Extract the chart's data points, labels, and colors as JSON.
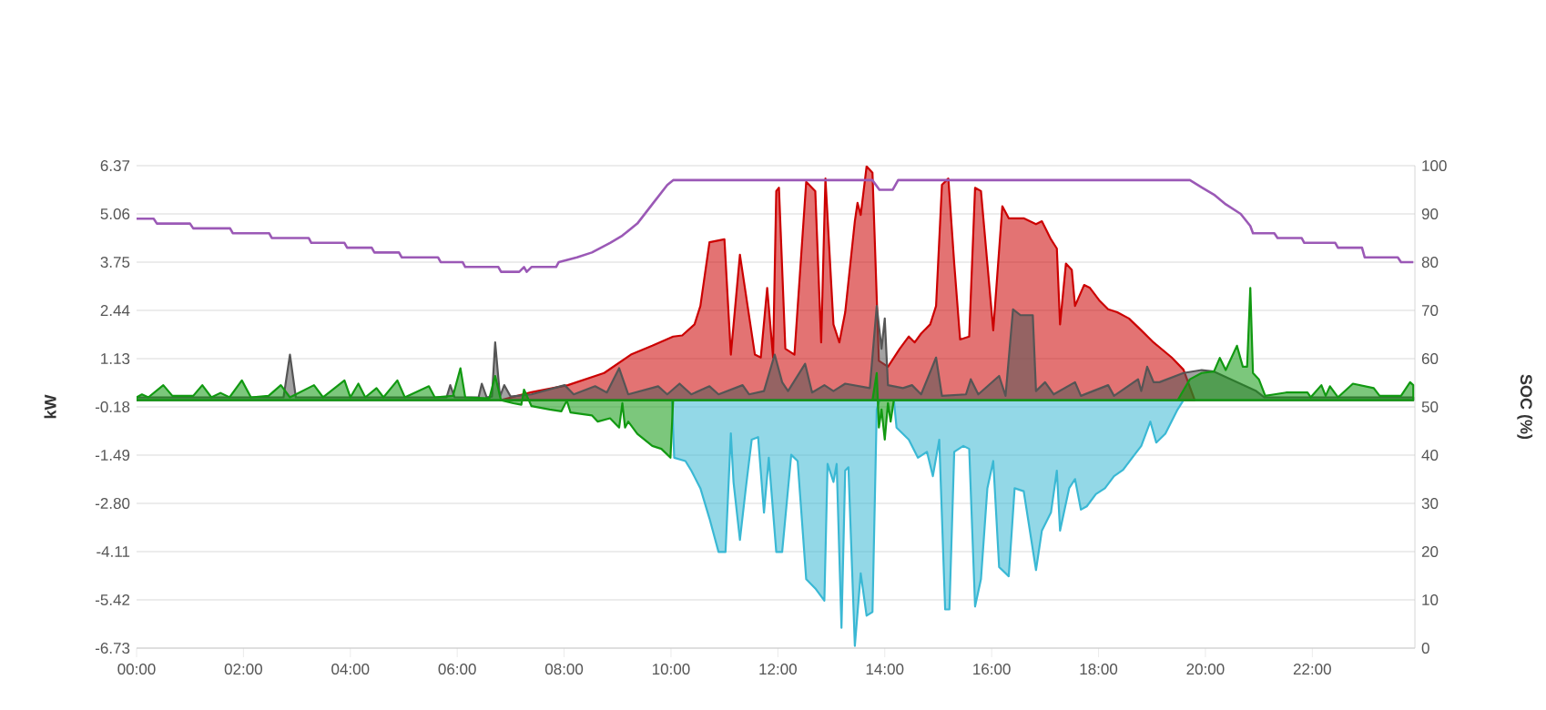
{
  "chart_data": {
    "type": "area",
    "ylabel": "kW",
    "y2label": "SOC (%)",
    "xlim": [
      0,
      23.92
    ],
    "ylim": [
      -6.73,
      6.37
    ],
    "y2lim": [
      0,
      100
    ],
    "xticks": [
      {
        "value": 0,
        "label": "00:00"
      },
      {
        "value": 2,
        "label": "02:00"
      },
      {
        "value": 4,
        "label": "04:00"
      },
      {
        "value": 6,
        "label": "06:00"
      },
      {
        "value": 8,
        "label": "08:00"
      },
      {
        "value": 10,
        "label": "10:00"
      },
      {
        "value": 12,
        "label": "12:00"
      },
      {
        "value": 14,
        "label": "14:00"
      },
      {
        "value": 16,
        "label": "16:00"
      },
      {
        "value": 18,
        "label": "18:00"
      },
      {
        "value": 20,
        "label": "20:00"
      },
      {
        "value": 22,
        "label": "22:00"
      }
    ],
    "yticks": [
      6.37,
      5.06,
      3.75,
      2.44,
      1.13,
      -0.18,
      -1.49,
      {
        "value": -2.8,
        "label": "-2.80"
      },
      -4.11,
      -5.42,
      -6.73
    ],
    "y2ticks": [
      0,
      10,
      20,
      30,
      40,
      50,
      60,
      70,
      80,
      90,
      100
    ],
    "grid": "y",
    "series": [
      {
        "color": "#cc0000",
        "x": [
          6.8,
          7.39,
          8.07,
          8.75,
          9.25,
          9.65,
          10.04,
          10.21,
          10.44,
          10.55,
          10.72,
          11.0,
          11.12,
          11.29,
          11.57,
          11.68,
          11.8,
          11.91,
          11.97,
          12.02,
          12.14,
          12.31,
          12.53,
          12.7,
          12.81,
          12.89,
          13.04,
          13.15,
          13.26,
          13.44,
          13.49,
          13.55,
          13.66,
          13.77,
          13.89,
          14.06,
          14.28,
          14.45,
          14.56,
          14.68,
          14.85,
          14.96,
          15.07,
          15.19,
          15.3,
          15.41,
          15.58,
          15.69,
          15.8,
          15.92,
          16.03,
          16.2,
          16.32,
          16.6,
          16.83,
          16.94,
          17.11,
          17.22,
          17.28,
          17.39,
          17.5,
          17.56,
          17.73,
          17.84,
          18.01,
          18.18,
          18.35,
          18.57,
          18.8,
          19.03,
          19.37,
          19.59,
          19.8
        ],
        "values": [
          0,
          0.22,
          0.41,
          0.74,
          1.24,
          1.48,
          1.73,
          1.76,
          2.06,
          2.56,
          4.29,
          4.37,
          1.24,
          3.95,
          1.24,
          1.16,
          3.05,
          1.16,
          5.68,
          5.77,
          1.4,
          1.24,
          5.93,
          5.68,
          1.57,
          6.02,
          2.06,
          1.57,
          2.39,
          4.86,
          5.36,
          5.03,
          6.35,
          6.18,
          1.07,
          0.91,
          1.4,
          1.73,
          1.57,
          1.81,
          2.06,
          2.56,
          5.85,
          6.02,
          3.71,
          1.65,
          1.73,
          5.77,
          5.68,
          3.71,
          1.9,
          5.27,
          4.94,
          4.94,
          4.78,
          4.86,
          4.37,
          4.12,
          2.06,
          3.71,
          3.54,
          2.56,
          3.13,
          3.05,
          2.72,
          2.47,
          2.39,
          2.22,
          1.9,
          1.57,
          1.16,
          0.83,
          0
        ]
      },
      {
        "color": "#3ab8d4",
        "x": [
          10.02,
          10.06,
          10.27,
          10.38,
          10.55,
          10.72,
          10.89,
          11.02,
          11.12,
          11.17,
          11.29,
          11.4,
          11.51,
          11.63,
          11.74,
          11.83,
          11.97,
          12.08,
          12.25,
          12.37,
          12.53,
          12.7,
          12.87,
          12.93,
          13.04,
          13.1,
          13.19,
          13.26,
          13.32,
          13.44,
          13.55,
          13.66,
          13.77,
          13.85,
          13.9,
          14.17,
          14.22,
          14.45,
          14.62,
          14.79,
          14.9,
          15.02,
          15.13,
          15.21,
          15.3,
          15.47,
          15.58,
          15.69,
          15.8,
          15.92,
          16.03,
          16.14,
          16.32,
          16.43,
          16.6,
          16.83,
          16.94,
          17.11,
          17.22,
          17.28,
          17.45,
          17.56,
          17.67,
          17.78,
          17.95,
          18.12,
          18.29,
          18.46,
          18.63,
          18.8,
          18.97,
          19.08,
          19.25,
          19.48,
          19.59
        ],
        "values": [
          0,
          -1.56,
          -1.65,
          -1.91,
          -2.39,
          -3.21,
          -4.12,
          -4.12,
          -0.9,
          -2.22,
          -3.79,
          -2.39,
          -1.07,
          -1.0,
          -3.05,
          -1.56,
          -4.12,
          -4.12,
          -1.48,
          -1.65,
          -4.86,
          -5.11,
          -5.44,
          -1.73,
          -2.22,
          -1.73,
          -6.18,
          -1.91,
          -1.82,
          -6.67,
          -4.7,
          -5.85,
          -5.75,
          -0.25,
          0,
          0,
          -0.74,
          -1.07,
          -1.56,
          -1.4,
          -2.06,
          -1.07,
          -5.68,
          -5.68,
          -1.4,
          -1.24,
          -1.32,
          -5.6,
          -4.86,
          -2.39,
          -1.65,
          -4.53,
          -4.78,
          -2.39,
          -2.47,
          -4.61,
          -3.54,
          -3.05,
          -1.91,
          -3.54,
          -2.39,
          -2.14,
          -2.97,
          -2.88,
          -2.55,
          -2.39,
          -2.06,
          -1.89,
          -1.56,
          -1.24,
          -0.58,
          -1.15,
          -0.91,
          -0.25,
          0
        ]
      },
      {
        "color": "#555555",
        "x": [
          0,
          2.75,
          2.87,
          2.98,
          5.8,
          5.87,
          5.95,
          6.4,
          6.46,
          6.55,
          6.65,
          6.71,
          6.8,
          6.88,
          7.0,
          7.39,
          8.01,
          8.18,
          8.58,
          8.8,
          9.03,
          9.2,
          9.76,
          9.93,
          10.16,
          10.38,
          10.72,
          10.89,
          11.34,
          11.46,
          11.74,
          11.94,
          12.08,
          12.19,
          12.51,
          12.64,
          12.87,
          13.04,
          13.26,
          13.72,
          13.85,
          13.94,
          14.0,
          14.06,
          14.34,
          14.51,
          14.68,
          14.96,
          15.07,
          15.52,
          15.61,
          15.75,
          16.14,
          16.26,
          16.4,
          16.54,
          16.77,
          16.83,
          17.0,
          17.16,
          17.56,
          17.67,
          18.18,
          18.29,
          18.74,
          18.8,
          18.91,
          19.03,
          19.14,
          19.59,
          19.93,
          20.16,
          20.95,
          21.1,
          23.89
        ],
        "values": [
          0.08,
          0.08,
          1.24,
          0.08,
          0.08,
          0.41,
          0.08,
          0.08,
          0.45,
          0.08,
          0.1,
          1.57,
          0.1,
          0.41,
          0.1,
          0.16,
          0.41,
          0.16,
          0.38,
          0.21,
          0.87,
          0.16,
          0.38,
          0.16,
          0.45,
          0.16,
          0.38,
          0.16,
          0.41,
          0.16,
          0.25,
          1.24,
          0.49,
          0.25,
          0.99,
          0.21,
          0.41,
          0.25,
          0.45,
          0.33,
          2.56,
          1.4,
          2.22,
          0.41,
          0.33,
          0.41,
          0.16,
          1.16,
          0.12,
          0.16,
          0.57,
          0.16,
          0.66,
          0.12,
          2.47,
          2.31,
          2.31,
          0.25,
          0.49,
          0.16,
          0.49,
          0.12,
          0.41,
          0.12,
          0.57,
          0.25,
          0.91,
          0.49,
          0.49,
          0.74,
          0.82,
          0.78,
          0.25,
          0.08,
          0.08
        ]
      },
      {
        "color": "#119911",
        "x": [
          0,
          0.1,
          0.22,
          0.5,
          0.67,
          1.06,
          1.23,
          1.4,
          1.57,
          1.74,
          1.97,
          2.14,
          2.47,
          2.7,
          2.87,
          3.32,
          3.49,
          3.89,
          4.0,
          4.15,
          4.28,
          4.49,
          4.62,
          4.88,
          5.02,
          5.47,
          5.58,
          5.92,
          6.06,
          6.15,
          6.6,
          6.71,
          6.82,
          7.05,
          7.2,
          7.25,
          7.39,
          7.73,
          7.95,
          8.05,
          8.12,
          8.52,
          8.63,
          8.86,
          9.03,
          9.09,
          9.14,
          9.2,
          9.37,
          9.65,
          9.82,
          9.99,
          10.04,
          13.77,
          13.85,
          13.89,
          13.94,
          14.0,
          14.06,
          14.11,
          14.17,
          19.48,
          19.71,
          19.93,
          20.16,
          20.27,
          20.38,
          20.59,
          20.7,
          20.78,
          20.84,
          20.89,
          21.0,
          21.12,
          21.29,
          21.51,
          21.91,
          21.97,
          22.17,
          22.25,
          22.33,
          22.48,
          22.76,
          23.15,
          23.26,
          23.66,
          23.83,
          23.89
        ],
        "values": [
          0.08,
          0.16,
          0.08,
          0.41,
          0.12,
          0.12,
          0.41,
          0.08,
          0.2,
          0.08,
          0.54,
          0.08,
          0.12,
          0.41,
          0.08,
          0.41,
          0.08,
          0.54,
          0.08,
          0.45,
          0.08,
          0.33,
          0.08,
          0.54,
          0.08,
          0.38,
          0.08,
          0.12,
          0.87,
          0.08,
          0.05,
          0.66,
          0,
          -0.08,
          -0.12,
          0.29,
          -0.16,
          -0.25,
          -0.3,
          -0.01,
          -0.33,
          -0.41,
          -0.58,
          -0.49,
          -0.74,
          -0.08,
          -0.74,
          -0.58,
          -0.91,
          -1.24,
          -1.32,
          -1.56,
          0,
          0,
          0.74,
          -0.74,
          -0.25,
          -1.07,
          -0.08,
          -0.58,
          0,
          0,
          0.57,
          0.74,
          0.78,
          1.15,
          0.82,
          1.48,
          0.91,
          0.91,
          3.05,
          0.74,
          0.57,
          0.12,
          0.16,
          0.21,
          0.21,
          0.08,
          0.41,
          0.12,
          0.38,
          0.08,
          0.45,
          0.33,
          0.12,
          0.12,
          0.49,
          0.41
        ]
      },
      {
        "type": "line",
        "axis": "y2",
        "color": "#9b59b6",
        "x": [
          0,
          0.32,
          0.38,
          1.0,
          1.06,
          1.75,
          1.8,
          2.48,
          2.53,
          3.22,
          3.27,
          3.89,
          3.94,
          4.4,
          4.45,
          4.91,
          4.96,
          5.64,
          5.69,
          6.1,
          6.15,
          6.77,
          6.82,
          7.16,
          7.25,
          7.3,
          7.39,
          7.85,
          7.9,
          8.24,
          8.52,
          8.86,
          9.09,
          9.37,
          9.65,
          9.93,
          10.04,
          13.77,
          13.9,
          14.15,
          14.25,
          19.71,
          19.93,
          20.16,
          20.38,
          20.66,
          20.84,
          20.89,
          21.29,
          21.35,
          21.8,
          21.85,
          22.43,
          22.48,
          22.93,
          22.98,
          23.6,
          23.66,
          23.89
        ],
        "values": [
          89,
          89,
          88,
          88,
          87,
          87,
          86,
          86,
          85,
          85,
          84,
          84,
          83,
          83,
          82,
          82,
          81,
          81,
          80,
          80,
          79,
          79,
          78,
          78,
          79,
          78,
          79,
          79,
          80,
          81,
          82,
          84,
          85.5,
          88,
          92,
          96,
          97,
          97,
          95,
          95,
          97,
          97,
          95.5,
          94,
          92,
          90,
          87.5,
          86,
          86,
          85,
          85,
          84,
          84,
          83,
          83,
          81,
          81,
          80,
          80
        ]
      }
    ]
  }
}
